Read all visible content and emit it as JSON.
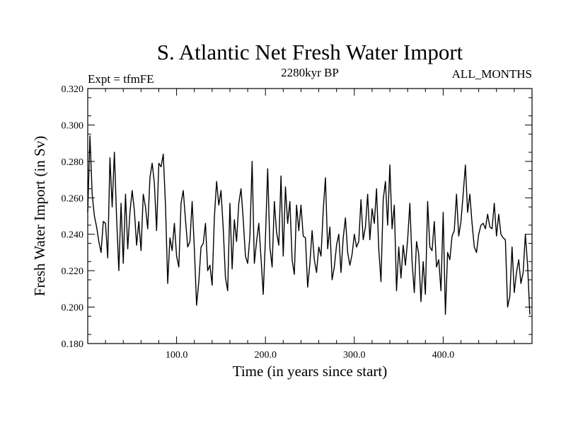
{
  "chart_data": {
    "type": "line",
    "title": "S. Atlantic Net Fresh Water Import",
    "subtitle_left": "Expt = tfmFE",
    "subtitle_center": "2280kyr BP",
    "subtitle_right": "ALL_MONTHS",
    "xlabel": "Time (in years since start)",
    "ylabel": "Fresh Water Import (in Sv)",
    "xlim": [
      0,
      500
    ],
    "ylim": [
      0.18,
      0.32
    ],
    "xticks_major": [
      100,
      200,
      300,
      400
    ],
    "xtick_labels": [
      "100.0",
      "200.0",
      "300.0",
      "400.0"
    ],
    "yticks_major": [
      0.18,
      0.2,
      0.22,
      0.24,
      0.26,
      0.28,
      0.3,
      0.32
    ],
    "ytick_labels": [
      "0.180",
      "0.200",
      "0.220",
      "0.240",
      "0.260",
      "0.280",
      "0.300",
      "0.320"
    ],
    "series": [
      {
        "name": "S. Atlantic Net Fresh Water Import",
        "x_start": 0,
        "x_step": 2.5,
        "values": [
          0.252,
          0.294,
          0.262,
          0.25,
          0.244,
          0.236,
          0.23,
          0.247,
          0.246,
          0.227,
          0.282,
          0.255,
          0.285,
          0.249,
          0.22,
          0.257,
          0.224,
          0.262,
          0.232,
          0.252,
          0.264,
          0.253,
          0.234,
          0.247,
          0.231,
          0.262,
          0.255,
          0.243,
          0.271,
          0.279,
          0.268,
          0.242,
          0.279,
          0.277,
          0.284,
          0.256,
          0.213,
          0.238,
          0.231,
          0.246,
          0.228,
          0.222,
          0.257,
          0.264,
          0.248,
          0.233,
          0.236,
          0.258,
          0.232,
          0.201,
          0.214,
          0.233,
          0.235,
          0.246,
          0.22,
          0.223,
          0.212,
          0.249,
          0.269,
          0.256,
          0.264,
          0.243,
          0.216,
          0.209,
          0.257,
          0.221,
          0.248,
          0.236,
          0.257,
          0.265,
          0.248,
          0.228,
          0.224,
          0.239,
          0.28,
          0.224,
          0.236,
          0.246,
          0.227,
          0.207,
          0.238,
          0.276,
          0.233,
          0.222,
          0.258,
          0.241,
          0.234,
          0.272,
          0.228,
          0.266,
          0.246,
          0.258,
          0.226,
          0.218,
          0.256,
          0.242,
          0.256,
          0.239,
          0.238,
          0.211,
          0.224,
          0.242,
          0.226,
          0.219,
          0.233,
          0.228,
          0.253,
          0.271,
          0.232,
          0.244,
          0.215,
          0.222,
          0.234,
          0.24,
          0.219,
          0.238,
          0.249,
          0.23,
          0.223,
          0.229,
          0.24,
          0.233,
          0.236,
          0.259,
          0.237,
          0.244,
          0.262,
          0.237,
          0.254,
          0.246,
          0.265,
          0.232,
          0.214,
          0.259,
          0.269,
          0.245,
          0.278,
          0.243,
          0.256,
          0.209,
          0.233,
          0.216,
          0.234,
          0.223,
          0.237,
          0.257,
          0.225,
          0.208,
          0.236,
          0.229,
          0.203,
          0.225,
          0.207,
          0.258,
          0.233,
          0.231,
          0.247,
          0.222,
          0.226,
          0.209,
          0.252,
          0.196,
          0.23,
          0.226,
          0.239,
          0.242,
          0.262,
          0.239,
          0.247,
          0.262,
          0.278,
          0.252,
          0.262,
          0.246,
          0.233,
          0.23,
          0.24,
          0.245,
          0.246,
          0.243,
          0.251,
          0.244,
          0.243,
          0.257,
          0.239,
          0.251,
          0.24,
          0.238,
          0.237,
          0.2,
          0.206,
          0.233,
          0.208,
          0.219,
          0.226,
          0.213,
          0.219,
          0.24,
          0.223,
          0.196
        ]
      }
    ]
  }
}
